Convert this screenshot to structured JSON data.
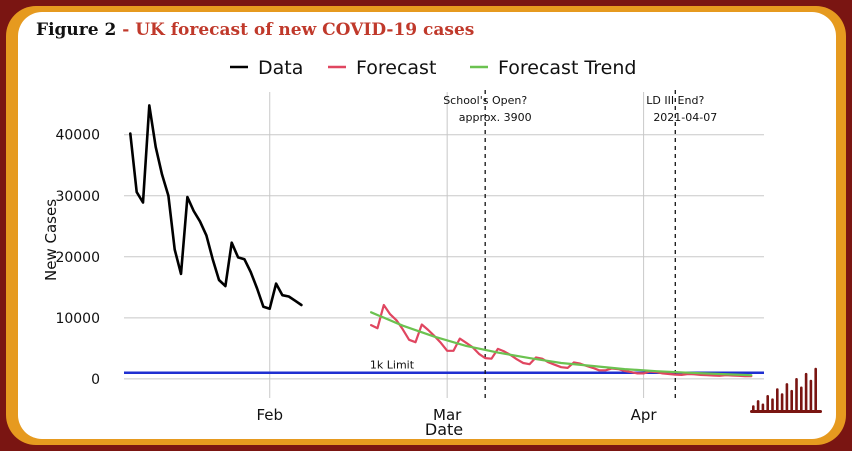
{
  "figure": {
    "number": "Figure 2",
    "separator": " - ",
    "title": "UK forecast of new COVID-19 cases",
    "accent_color": "#c0392b",
    "frame_outer_color": "#7a1512",
    "frame_inner_color": "#e69a1f"
  },
  "chart_data": {
    "type": "line",
    "xlabel": "Date",
    "ylabel": "New Cases",
    "x_ticks": [
      "Feb",
      "Mar",
      "Apr"
    ],
    "y_ticks": [
      "0",
      "10000",
      "20000",
      "30000",
      "40000"
    ],
    "ylim": [
      -1500,
      47000
    ],
    "x_unit": "days since 2021-01-01",
    "grid": true,
    "legend": {
      "placement": "top",
      "entries": [
        "Data",
        "Forecast",
        "Forecast Trend"
      ]
    },
    "series": [
      {
        "name": "Data",
        "color": "#000000",
        "x": [
          10,
          11,
          12,
          13,
          14,
          15,
          16,
          17,
          18,
          19,
          20,
          21,
          22,
          23,
          24,
          25,
          26,
          27,
          28,
          29,
          30,
          31,
          32,
          33,
          34,
          35,
          36,
          37,
          38,
          39,
          40,
          41,
          42,
          43,
          44,
          45,
          46,
          47,
          48
        ],
        "values": [
          40200,
          30600,
          28900,
          44800,
          38000,
          33500,
          30000,
          21200,
          17200,
          29800,
          27500,
          25800,
          23500,
          19600,
          16200,
          15200,
          22300,
          19900,
          19600,
          17500,
          14800,
          11800,
          11500,
          15600,
          13700,
          13500,
          12800,
          12100,
          null,
          null,
          null,
          null,
          null,
          null,
          null,
          null,
          null,
          null,
          null
        ]
      },
      {
        "name": "Forecast",
        "color": "#e04660",
        "x": [
          48,
          49,
          50,
          51,
          52,
          53,
          54,
          55,
          56,
          57,
          58,
          59,
          60,
          61,
          62,
          63,
          64,
          65,
          66,
          67,
          68,
          69,
          70,
          71,
          72,
          73,
          74,
          75,
          76,
          77,
          78,
          79,
          80,
          81,
          82,
          83,
          84,
          85,
          86,
          87,
          88,
          89,
          90,
          91,
          92,
          93,
          94,
          95,
          96,
          97,
          98,
          99,
          100,
          101,
          102,
          103,
          104,
          105,
          106,
          107,
          108
        ],
        "values": [
          8800,
          8300,
          12100,
          10600,
          9600,
          8100,
          6400,
          6000,
          8900,
          8000,
          7000,
          5900,
          4600,
          4600,
          6600,
          5900,
          5200,
          4100,
          3400,
          3300,
          4900,
          4500,
          3900,
          3200,
          2600,
          2400,
          3500,
          3300,
          2700,
          2300,
          1900,
          1800,
          2700,
          2500,
          2100,
          1800,
          1400,
          1400,
          1700,
          1600,
          1300,
          1100,
          900,
          900,
          1200,
          1100,
          900,
          800,
          700,
          650,
          800,
          750,
          650,
          600,
          550,
          500,
          600,
          550,
          500,
          450,
          450
        ]
      },
      {
        "name": "Forecast Trend",
        "color": "#6bc250",
        "x": [
          48,
          53,
          58,
          63,
          68,
          73,
          78,
          83,
          88,
          93,
          98,
          103,
          108
        ],
        "values": [
          10900,
          8700,
          6900,
          5400,
          4300,
          3400,
          2600,
          2100,
          1600,
          1250,
          1000,
          800,
          600
        ]
      }
    ],
    "horizontal_lines": [
      {
        "y": 1000,
        "label": "1k Limit",
        "color": "#1f2fd1"
      }
    ],
    "vertical_lines": [
      {
        "x": 66,
        "label_line1": "School's Open?",
        "label_line2": "approx. 3900"
      },
      {
        "x": 96,
        "label_line1": "LD III End?",
        "label_line2": "2021-04-07"
      }
    ]
  },
  "decoration": {
    "name": "bar-logo",
    "color": "#7a1512"
  }
}
